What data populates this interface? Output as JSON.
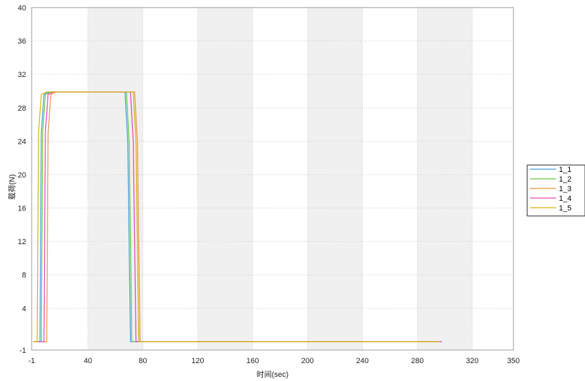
{
  "chart_data": {
    "type": "line",
    "xlabel": "时间(sec)",
    "ylabel": "载荷(N)",
    "xlim": [
      -1,
      350
    ],
    "ylim": [
      -1,
      40
    ],
    "x_ticks": [
      -1,
      40,
      80,
      120,
      160,
      200,
      240,
      280,
      320,
      350
    ],
    "x_tick_labels": [
      "-1",
      "40",
      "80",
      "120",
      "160",
      "200",
      "240",
      "280",
      "320",
      "350"
    ],
    "y_ticks": [
      -1,
      4,
      8,
      12,
      16,
      20,
      24,
      28,
      32,
      36,
      40
    ],
    "y_tick_labels": [
      "-1",
      "4",
      "8",
      "12",
      "16",
      "20",
      "24",
      "28",
      "32",
      "36",
      "40"
    ],
    "shaded_x_bands": [
      [
        40,
        80
      ],
      [
        120,
        160
      ],
      [
        200,
        240
      ],
      [
        280,
        320
      ]
    ],
    "grid": true,
    "legend_position": "right",
    "series": [
      {
        "name": "1_1",
        "color": "#3a9bd9",
        "x": [
          0,
          5,
          6,
          8,
          12,
          67,
          69,
          71,
          80,
          296
        ],
        "y": [
          0,
          0,
          25,
          29.6,
          29.9,
          29.9,
          24,
          0,
          0,
          0
        ]
      },
      {
        "name": "1_2",
        "color": "#5cc83c",
        "x": [
          0,
          6,
          7,
          9,
          13,
          68,
          70,
          72,
          80,
          296
        ],
        "y": [
          0,
          0,
          25,
          29.6,
          29.9,
          29.9,
          24,
          0,
          0,
          0
        ]
      },
      {
        "name": "1_3",
        "color": "#e8903a",
        "x": [
          0,
          10,
          11,
          13,
          17,
          74,
          76,
          78,
          82,
          296
        ],
        "y": [
          0,
          0,
          25,
          29.6,
          29.9,
          29.9,
          24,
          0,
          0,
          0
        ]
      },
      {
        "name": "1_4",
        "color": "#e040b0",
        "x": [
          0,
          8,
          9,
          11,
          15,
          71,
          73,
          75,
          81,
          298
        ],
        "y": [
          0,
          0,
          25,
          29.6,
          29.9,
          29.9,
          24,
          0,
          0,
          0
        ]
      },
      {
        "name": "1_5",
        "color": "#d4b000",
        "x": [
          0,
          3,
          4,
          6,
          10,
          73,
          75,
          77,
          82,
          296
        ],
        "y": [
          0,
          0,
          25,
          29.6,
          29.9,
          29.9,
          24,
          0,
          0,
          0
        ]
      }
    ]
  }
}
